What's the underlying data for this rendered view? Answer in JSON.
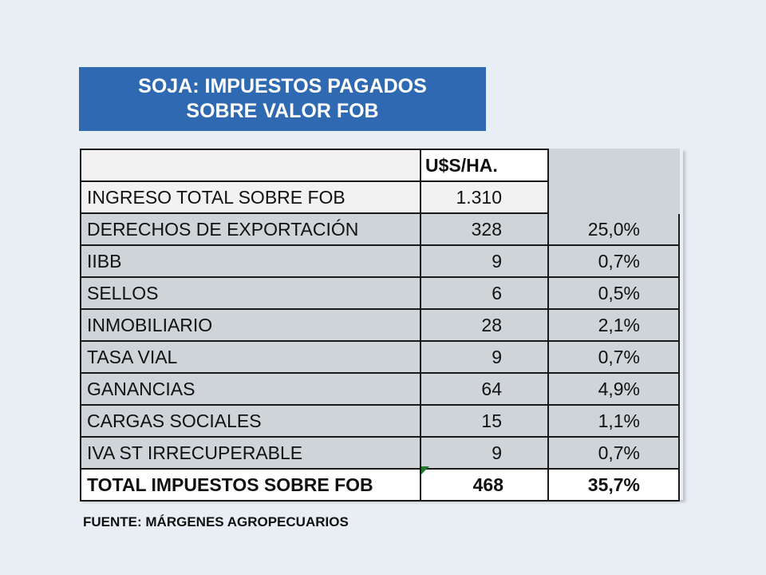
{
  "title": {
    "line1": "SOJA: IMPUESTOS PAGADOS",
    "line2": "SOBRE VALOR FOB",
    "background": "#2f69b1"
  },
  "table": {
    "header_usd": "U$S/HA.",
    "income": {
      "label": "INGRESO TOTAL SOBRE FOB",
      "value": "1.310"
    },
    "rows": [
      {
        "label": "DERECHOS DE EXPORTACIÓN",
        "value": "328",
        "pct": "25,0%"
      },
      {
        "label": "IIBB",
        "value": "9",
        "pct": "0,7%"
      },
      {
        "label": "SELLOS",
        "value": "6",
        "pct": "0,5%"
      },
      {
        "label": "INMOBILIARIO",
        "value": "28",
        "pct": "2,1%"
      },
      {
        "label": "TASA VIAL",
        "value": "9",
        "pct": "0,7%"
      },
      {
        "label": "GANANCIAS",
        "value": "64",
        "pct": "4,9%"
      },
      {
        "label": "CARGAS SOCIALES",
        "value": "15",
        "pct": "1,1%"
      },
      {
        "label": "IVA ST IRRECUPERABLE",
        "value": "9",
        "pct": "0,7%"
      }
    ],
    "total": {
      "label": "TOTAL IMPUESTOS SOBRE FOB",
      "value": "468",
      "pct": "35,7%"
    }
  },
  "source": "FUENTE: MÁRGENES AGROPECUARIOS"
}
